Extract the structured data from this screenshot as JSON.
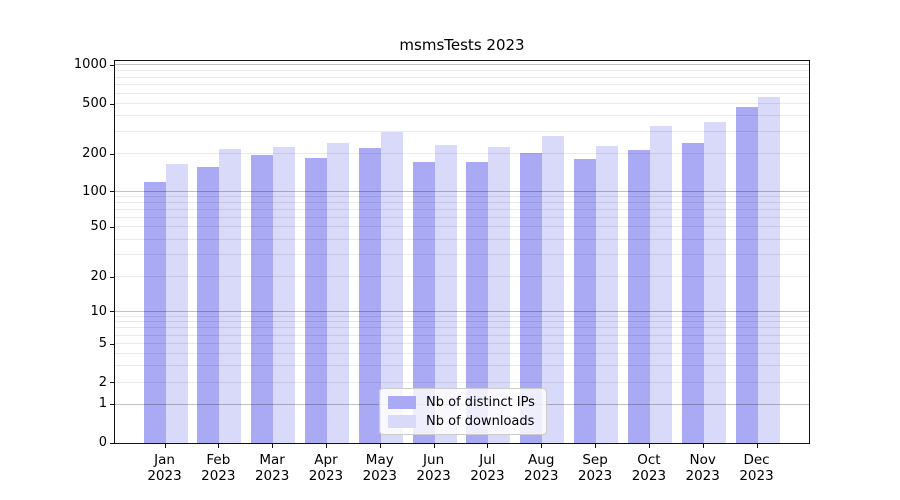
{
  "chart_data": {
    "type": "bar",
    "title": "msmsTests 2023",
    "categories": [
      "Jan",
      "Feb",
      "Mar",
      "Apr",
      "May",
      "Jun",
      "Jul",
      "Aug",
      "Sep",
      "Oct",
      "Nov",
      "Dec"
    ],
    "year_label": "2023",
    "series": [
      {
        "name": "Nb of distinct IPs",
        "color": "#a9a9f4",
        "values": [
          119,
          157,
          197,
          186,
          225,
          173,
          172,
          205,
          181,
          217,
          243,
          472
        ]
      },
      {
        "name": "Nb of downloads",
        "color": "#d9d9f9",
        "values": [
          166,
          218,
          228,
          243,
          298,
          236,
          226,
          280,
          233,
          337,
          362,
          566
        ]
      }
    ],
    "y_ticks": [
      0,
      1,
      2,
      5,
      10,
      20,
      50,
      100,
      200,
      500,
      1000
    ],
    "y_minor_ticks": [
      3,
      4,
      6,
      7,
      8,
      9,
      30,
      40,
      60,
      70,
      80,
      90,
      300,
      400,
      600,
      700,
      800,
      900
    ],
    "y_major_line_ticks": [
      1,
      10,
      100,
      1000
    ],
    "ylim": [
      0,
      1000
    ],
    "yscale": "log-like with linear segment near zero",
    "grid": true,
    "legend_position": "lower-center"
  }
}
